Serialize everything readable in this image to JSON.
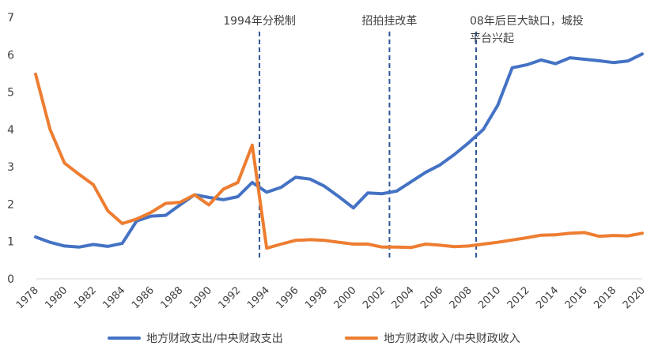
{
  "chart_data": {
    "type": "line",
    "title": "",
    "xlabel": "",
    "ylabel": "",
    "xlim": [
      1978,
      2020
    ],
    "ylim": [
      0,
      7
    ],
    "yticks": [
      0,
      1,
      2,
      3,
      4,
      5,
      6,
      7
    ],
    "xticks": [
      1978,
      1980,
      1982,
      1984,
      1986,
      1988,
      1990,
      1992,
      1994,
      1996,
      1998,
      2000,
      2002,
      2004,
      2006,
      2008,
      2010,
      2012,
      2014,
      2016,
      2018,
      2020
    ],
    "grid": false,
    "legend": "bottom",
    "x": [
      1978,
      1979,
      1980,
      1981,
      1982,
      1983,
      1984,
      1985,
      1986,
      1987,
      1988,
      1989,
      1990,
      1991,
      1992,
      1993,
      1994,
      1995,
      1996,
      1997,
      1998,
      1999,
      2000,
      2001,
      2002,
      2003,
      2004,
      2005,
      2006,
      2007,
      2008,
      2009,
      2010,
      2011,
      2012,
      2013,
      2014,
      2015,
      2016,
      2017,
      2018,
      2019,
      2020
    ],
    "series": [
      {
        "name": "地方财政支出/中央财政支出",
        "color": "#4472C4",
        "values": [
          1.12,
          0.98,
          0.88,
          0.85,
          0.92,
          0.87,
          0.95,
          1.55,
          1.68,
          1.7,
          1.98,
          2.25,
          2.18,
          2.12,
          2.2,
          2.58,
          2.32,
          2.45,
          2.72,
          2.67,
          2.48,
          2.2,
          1.9,
          2.3,
          2.28,
          2.35,
          2.6,
          2.85,
          3.05,
          3.33,
          3.65,
          4.0,
          4.65,
          5.65,
          5.73,
          5.86,
          5.76,
          5.92,
          5.88,
          5.84,
          5.79,
          5.83,
          6.02
        ]
      },
      {
        "name": "地方财政收入/中央财政收入",
        "color": "#ED7D31",
        "values": [
          5.48,
          4.0,
          3.1,
          2.8,
          2.52,
          1.82,
          1.48,
          1.6,
          1.78,
          2.02,
          2.05,
          2.25,
          1.98,
          2.4,
          2.58,
          3.58,
          0.82,
          0.93,
          1.03,
          1.05,
          1.03,
          0.98,
          0.93,
          0.93,
          0.85,
          0.85,
          0.84,
          0.93,
          0.9,
          0.86,
          0.88,
          0.93,
          0.98,
          1.04,
          1.1,
          1.17,
          1.18,
          1.22,
          1.24,
          1.14,
          1.16,
          1.15,
          1.22
        ]
      }
    ],
    "annotations": [
      {
        "x": 1993.5,
        "text_lines": [
          "1994年分税制"
        ]
      },
      {
        "x": 2002.5,
        "text_lines": [
          "招拍挂改革"
        ]
      },
      {
        "x": 2008.5,
        "text_lines": [
          "08年后巨大缺口，城投",
          "平台兴起"
        ]
      }
    ],
    "axis_color": "#D9D9D9",
    "annotation_line_color": "#2F5597"
  }
}
